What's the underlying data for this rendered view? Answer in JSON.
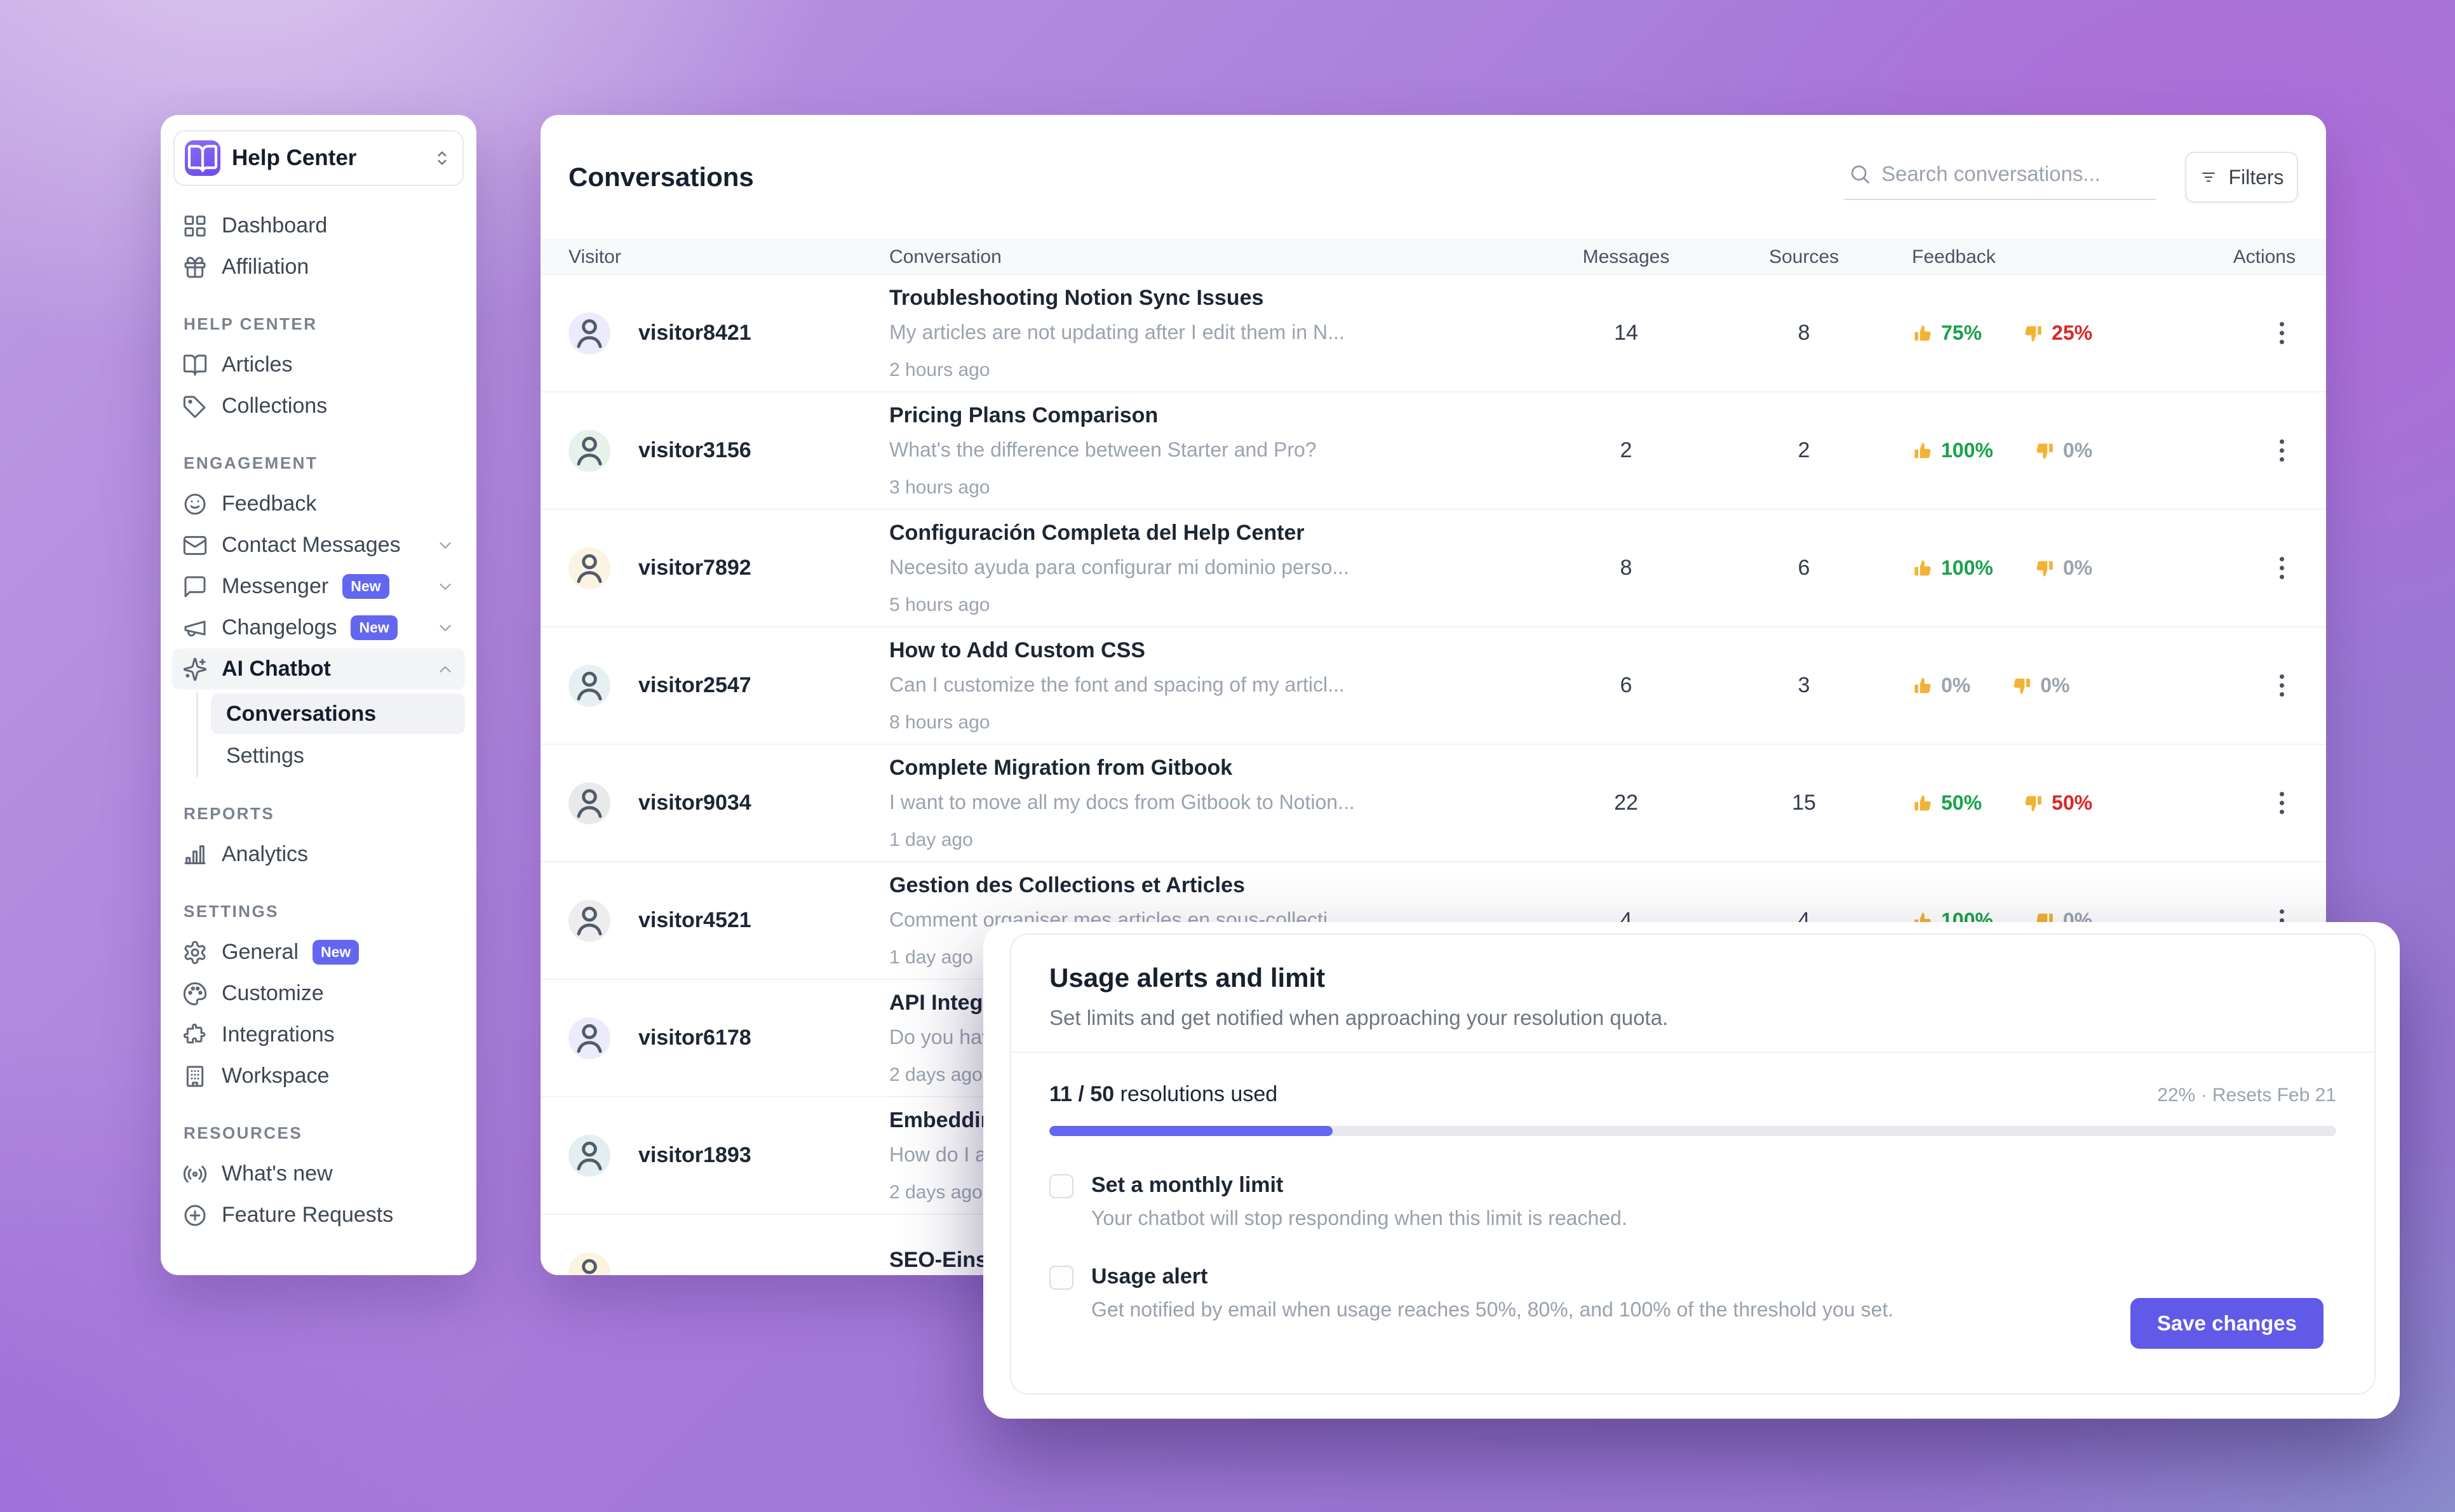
{
  "workspace": {
    "name": "Help Center"
  },
  "colors": {
    "accent": "#6366f1",
    "save_button": "#6159e8",
    "positive": "#17a34a",
    "negative": "#dc2626",
    "muted": "#9aa3b0"
  },
  "sidebar": {
    "sections": [
      {
        "title": "",
        "items": [
          {
            "icon": "grid",
            "label": "Dashboard"
          },
          {
            "icon": "gift",
            "label": "Affiliation"
          }
        ]
      },
      {
        "title": "HELP CENTER",
        "items": [
          {
            "icon": "book-open",
            "label": "Articles"
          },
          {
            "icon": "tag",
            "label": "Collections"
          }
        ]
      },
      {
        "title": "ENGAGEMENT",
        "items": [
          {
            "icon": "smile",
            "label": "Feedback"
          },
          {
            "icon": "mail",
            "label": "Contact Messages",
            "chevron": "down"
          },
          {
            "icon": "chat",
            "label": "Messenger",
            "badge": "New",
            "chevron": "down"
          },
          {
            "icon": "megaphone",
            "label": "Changelogs",
            "badge": "New",
            "chevron": "down"
          },
          {
            "icon": "sparkles",
            "label": "AI Chatbot",
            "chevron": "up",
            "active": true,
            "children": [
              {
                "label": "Conversations",
                "active": true
              },
              {
                "label": "Settings"
              }
            ]
          }
        ]
      },
      {
        "title": "REPORTS",
        "items": [
          {
            "icon": "bar-chart",
            "label": "Analytics"
          }
        ]
      },
      {
        "title": "SETTINGS",
        "items": [
          {
            "icon": "gear",
            "label": "General",
            "badge": "New"
          },
          {
            "icon": "palette",
            "label": "Customize"
          },
          {
            "icon": "puzzle",
            "label": "Integrations"
          },
          {
            "icon": "building",
            "label": "Workspace"
          }
        ]
      },
      {
        "title": "RESOURCES",
        "items": [
          {
            "icon": "broadcast",
            "label": "What's new"
          },
          {
            "icon": "plus-circle",
            "label": "Feature Requests"
          }
        ]
      }
    ]
  },
  "header": {
    "title": "Conversations",
    "search_placeholder": "Search conversations...",
    "filters_label": "Filters"
  },
  "table": {
    "columns": [
      "Visitor",
      "Conversation",
      "Messages",
      "Sources",
      "Feedback",
      "Actions"
    ],
    "rows": [
      {
        "visitor": "visitor8421",
        "avatar_bg": "#ecebfb",
        "title": "Troubleshooting Notion Sync Issues",
        "snippet": "My articles are not updating after I edit them in N...",
        "time": "2 hours ago",
        "messages": "14",
        "sources": "8",
        "up": "75%",
        "up_state": "pos",
        "down": "25%",
        "down_state": "neg"
      },
      {
        "visitor": "visitor3156",
        "avatar_bg": "#e5f1e9",
        "title": "Pricing Plans Comparison",
        "snippet": "What's the difference between Starter and Pro?",
        "time": "3 hours ago",
        "messages": "2",
        "sources": "2",
        "up": "100%",
        "up_state": "pos",
        "down": "0%",
        "down_state": "zero"
      },
      {
        "visitor": "visitor7892",
        "avatar_bg": "#fcf3e3",
        "title": "Configuración Completa del Help Center",
        "snippet": "Necesito ayuda para configurar mi dominio perso...",
        "time": "5 hours ago",
        "messages": "8",
        "sources": "6",
        "up": "100%",
        "up_state": "pos",
        "down": "0%",
        "down_state": "zero"
      },
      {
        "visitor": "visitor2547",
        "avatar_bg": "#e6f0f2",
        "title": "How to Add Custom CSS",
        "snippet": "Can I customize the font and spacing of my articl...",
        "time": "8 hours ago",
        "messages": "6",
        "sources": "3",
        "up": "0%",
        "up_state": "zero",
        "down": "0%",
        "down_state": "zero"
      },
      {
        "visitor": "visitor9034",
        "avatar_bg": "#e9e9ec",
        "title": "Complete Migration from Gitbook",
        "snippet": "I want to move all my docs from Gitbook to Notion...",
        "time": "1 day ago",
        "messages": "22",
        "sources": "15",
        "up": "50%",
        "up_state": "pos",
        "down": "50%",
        "down_state": "neg"
      },
      {
        "visitor": "visitor4521",
        "avatar_bg": "#ededf0",
        "title": "Gestion des Collections et Articles",
        "snippet": "Comment organiser mes articles en sous-collecti...",
        "time": "1 day ago",
        "messages": "4",
        "sources": "4",
        "up": "100%",
        "up_state": "pos",
        "down": "0%",
        "down_state": "zero"
      },
      {
        "visitor": "visitor6178",
        "avatar_bg": "#ecebfb",
        "title": "API Integration Q",
        "snippet": "Do you have an API",
        "time": "2 days ago",
        "messages": "",
        "sources": "",
        "up": "",
        "up_state": "",
        "down": "",
        "down_state": ""
      },
      {
        "visitor": "visitor1893",
        "avatar_bg": "#e3eef0",
        "title": "Embedding Chat",
        "snippet": "How do I add the ch",
        "time": "2 days ago",
        "messages": "",
        "sources": "",
        "up": "",
        "up_state": "",
        "down": "",
        "down_state": ""
      },
      {
        "visitor": "",
        "avatar_bg": "#fcf2e0",
        "title": "SEO-Einstellunge",
        "snippet": "",
        "time": "",
        "messages": "",
        "sources": "",
        "up": "",
        "up_state": "",
        "down": "",
        "down_state": ""
      }
    ]
  },
  "modal": {
    "title": "Usage alerts and limit",
    "subtitle": "Set limits and get notified when approaching your resolution quota.",
    "usage_bold": "11 / 50",
    "usage_rest": " resolutions used",
    "usage_meta": "22% · Resets Feb 21",
    "progress_pct": 22,
    "options": [
      {
        "label": "Set a monthly limit",
        "description": "Your chatbot will stop responding when this limit is reached.",
        "checked": false
      },
      {
        "label": "Usage alert",
        "description": "Get notified by email when usage reaches 50%, 80%, and 100% of the threshold you set.",
        "checked": false
      }
    ],
    "save_label": "Save changes"
  }
}
